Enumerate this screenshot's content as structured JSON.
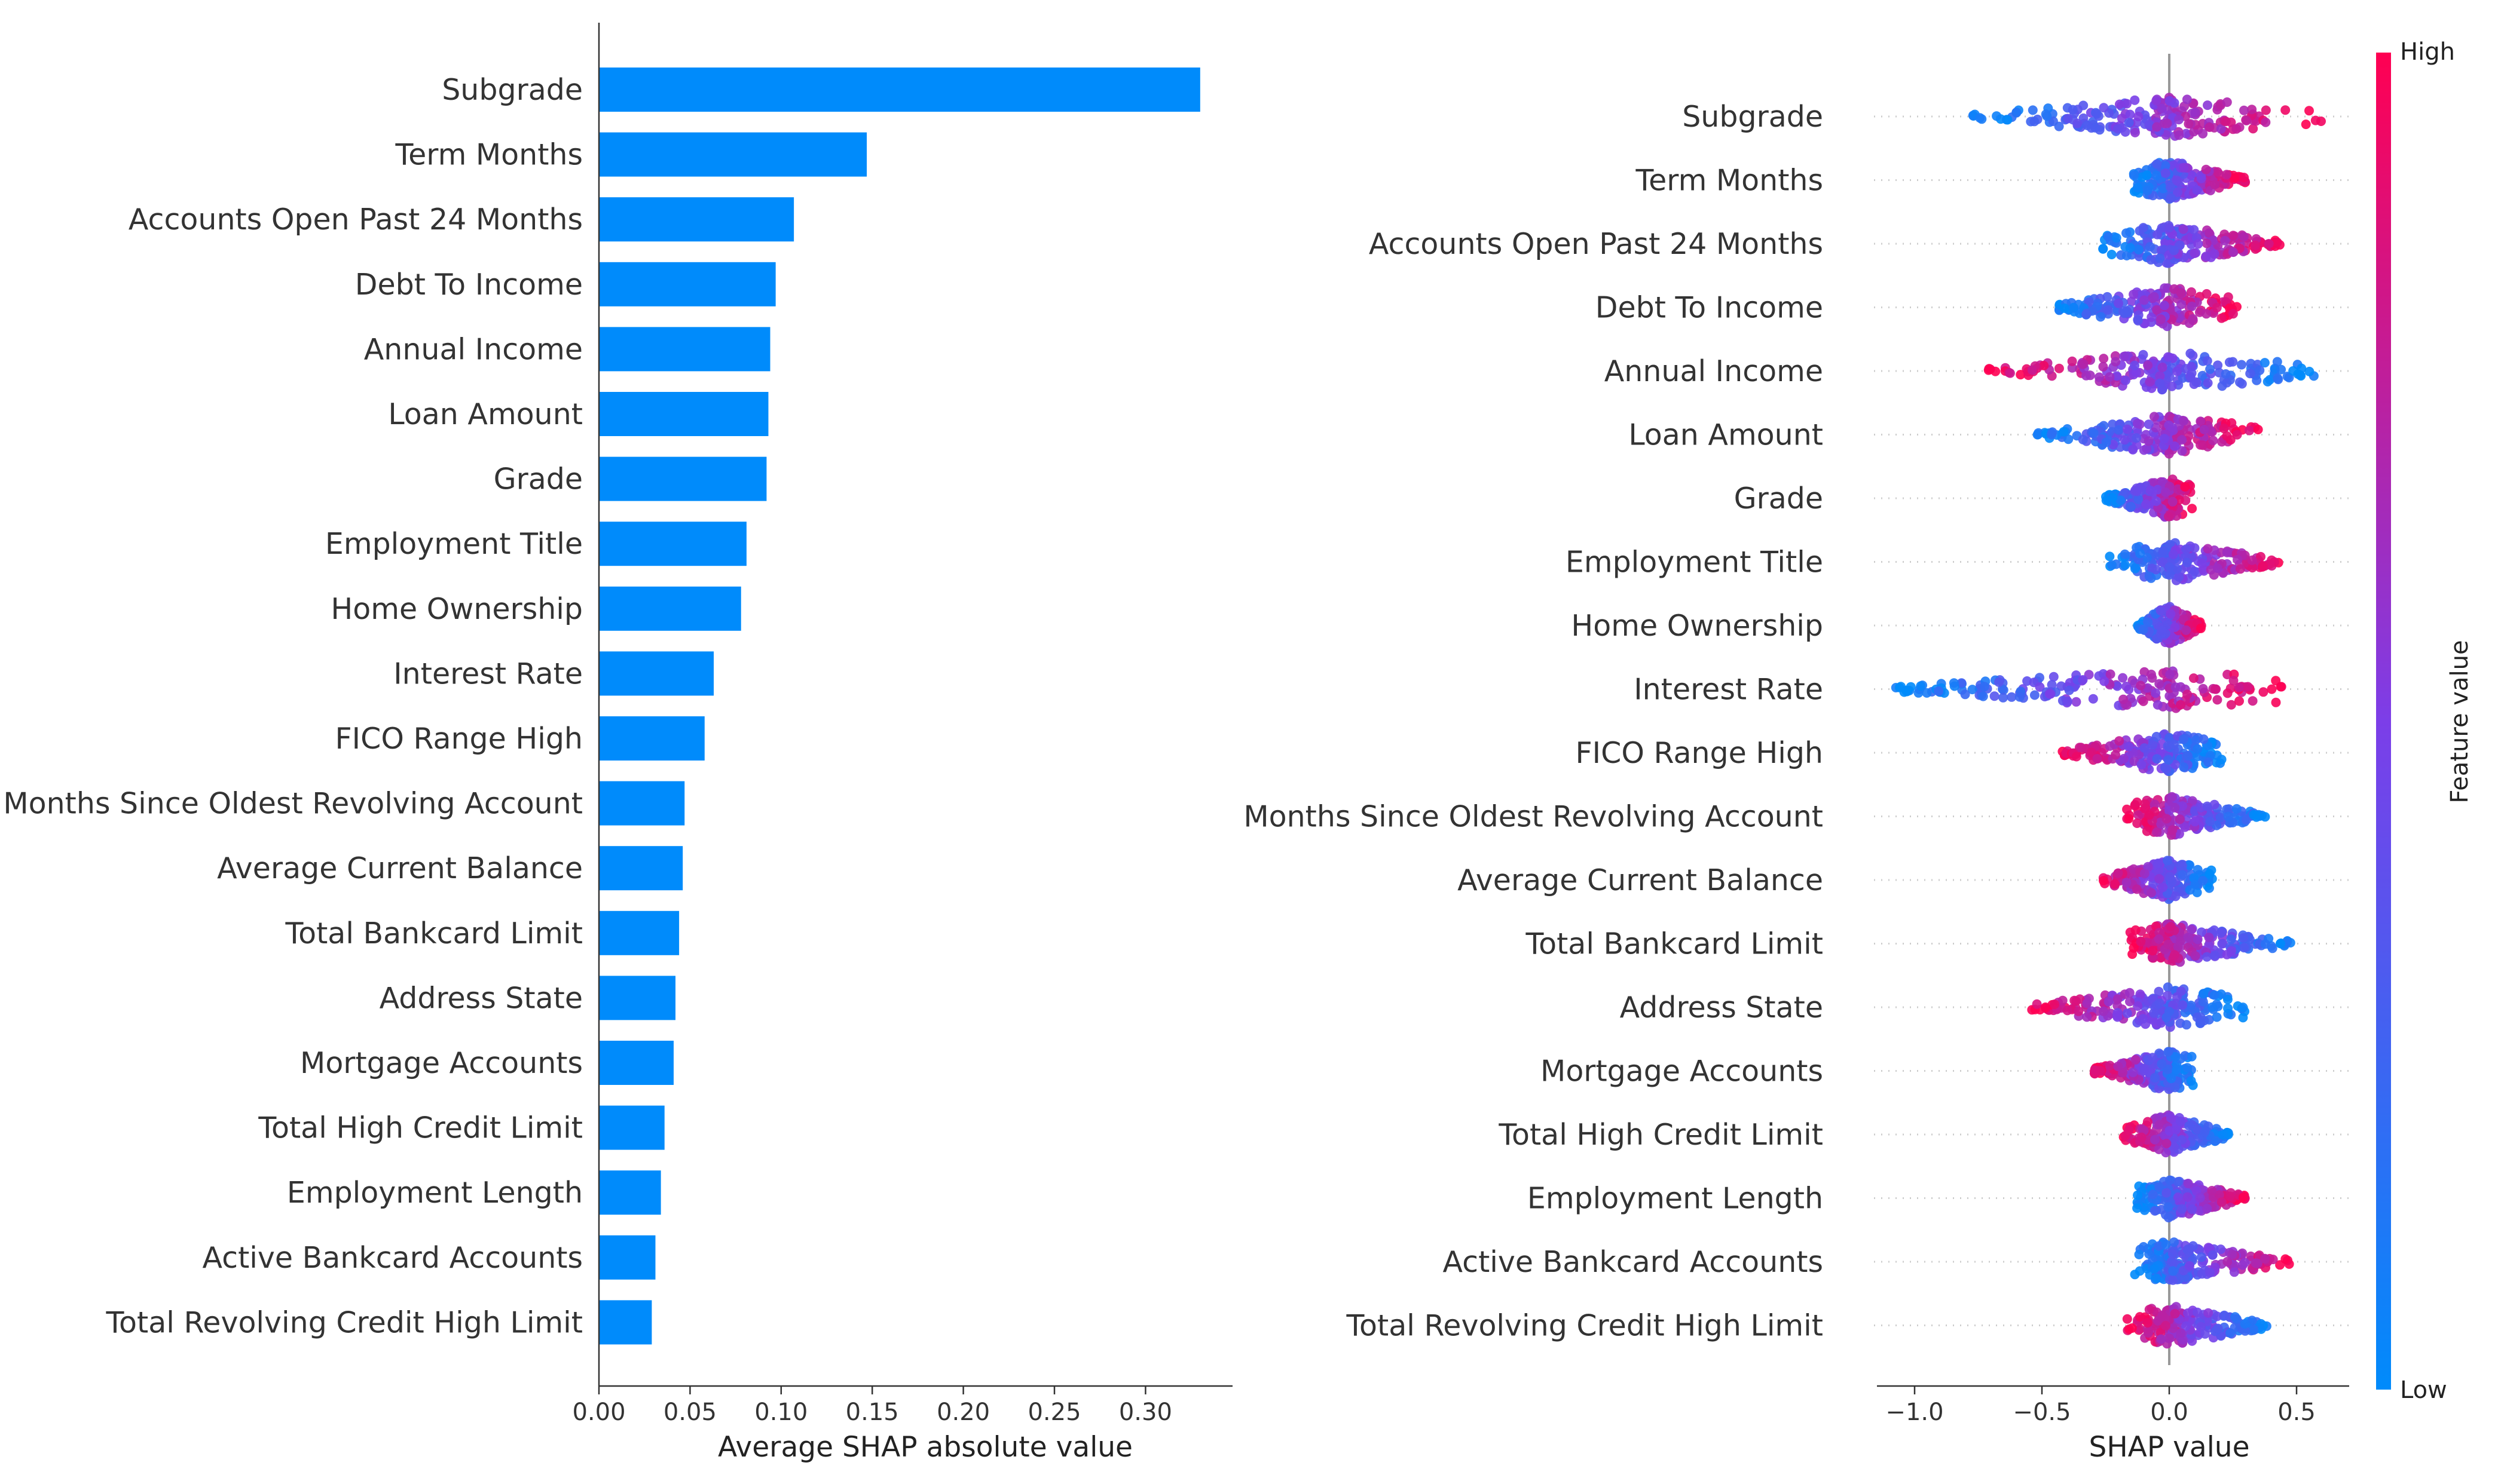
{
  "chart_data": [
    {
      "type": "bar",
      "orientation": "horizontal",
      "title": "",
      "xlabel": "Average SHAP absolute value",
      "ylabel": "",
      "xlim": [
        0,
        0.34
      ],
      "x_ticks": [
        0,
        0.05,
        0.1,
        0.15,
        0.2,
        0.25,
        0.3
      ],
      "x_tick_labels": [
        "0.00",
        "0.05",
        "0.10",
        "0.15",
        "0.20",
        "0.25",
        "0.30"
      ],
      "grid": false,
      "color": "#008bfb",
      "categories": [
        "Subgrade",
        "Term Months",
        "Accounts Open Past 24 Months",
        "Debt To Income",
        "Annual Income",
        "Loan Amount",
        "Grade",
        "Employment Title",
        "Home Ownership",
        "Interest Rate",
        "FICO Range High",
        "Months Since Oldest Revolving Account",
        "Average Current Balance",
        "Total Bankcard Limit",
        "Address State",
        "Mortgage Accounts",
        "Total High Credit Limit",
        "Employment Length",
        "Active Bankcard Accounts",
        "Total Revolving Credit High Limit"
      ],
      "values": [
        0.33,
        0.147,
        0.107,
        0.097,
        0.094,
        0.093,
        0.092,
        0.081,
        0.078,
        0.063,
        0.058,
        0.047,
        0.046,
        0.044,
        0.042,
        0.041,
        0.036,
        0.034,
        0.031,
        0.029
      ]
    },
    {
      "type": "scatter",
      "subtype": "beeswarm",
      "title": "",
      "xlabel": "SHAP value",
      "ylabel": "",
      "xlim": [
        -1.15,
        0.68
      ],
      "x_ticks": [
        -1.0,
        -0.5,
        0.0,
        0.5
      ],
      "x_tick_labels": [
        "−1.0",
        "−0.5",
        "0.0",
        "0.5"
      ],
      "zero_line": true,
      "categories": [
        "Subgrade",
        "Term Months",
        "Accounts Open Past 24 Months",
        "Debt To Income",
        "Annual Income",
        "Loan Amount",
        "Grade",
        "Employment Title",
        "Home Ownership",
        "Interest Rate",
        "FICO Range High",
        "Months Since Oldest Revolving Account",
        "Average Current Balance",
        "Total Bankcard Limit",
        "Address State",
        "Mortgage Accounts",
        "Total High Credit Limit",
        "Employment Length",
        "Active Bankcard Accounts",
        "Total Revolving Credit High Limit"
      ],
      "shap_ranges": [
        {
          "min": -0.78,
          "max": 0.6,
          "high_side": "right"
        },
        {
          "min": -0.14,
          "max": 0.3,
          "high_side": "right"
        },
        {
          "min": -0.27,
          "max": 0.44,
          "high_side": "right"
        },
        {
          "min": -0.45,
          "max": 0.27,
          "high_side": "right"
        },
        {
          "min": -0.72,
          "max": 0.58,
          "high_side": "left"
        },
        {
          "min": -0.52,
          "max": 0.35,
          "high_side": "right"
        },
        {
          "min": -0.25,
          "max": 0.09,
          "high_side": "right"
        },
        {
          "min": -0.24,
          "max": 0.45,
          "high_side": "right"
        },
        {
          "min": -0.13,
          "max": 0.13,
          "high_side": "right"
        },
        {
          "min": -1.08,
          "max": 0.45,
          "high_side": "right"
        },
        {
          "min": -0.42,
          "max": 0.22,
          "high_side": "left"
        },
        {
          "min": -0.18,
          "max": 0.38,
          "high_side": "left"
        },
        {
          "min": -0.28,
          "max": 0.17,
          "high_side": "left"
        },
        {
          "min": -0.16,
          "max": 0.48,
          "high_side": "left"
        },
        {
          "min": -0.56,
          "max": 0.3,
          "high_side": "left"
        },
        {
          "min": -0.3,
          "max": 0.1,
          "high_side": "left"
        },
        {
          "min": -0.18,
          "max": 0.24,
          "high_side": "left"
        },
        {
          "min": -0.13,
          "max": 0.3,
          "high_side": "right"
        },
        {
          "min": -0.14,
          "max": 0.48,
          "high_side": "right"
        },
        {
          "min": -0.17,
          "max": 0.4,
          "high_side": "left"
        }
      ],
      "colorbar": {
        "label": "Feature value",
        "high_label": "High",
        "low_label": "Low",
        "low_color": "#008bfb",
        "mid_color": "#7c3ee8",
        "high_color": "#ff0052"
      }
    }
  ]
}
